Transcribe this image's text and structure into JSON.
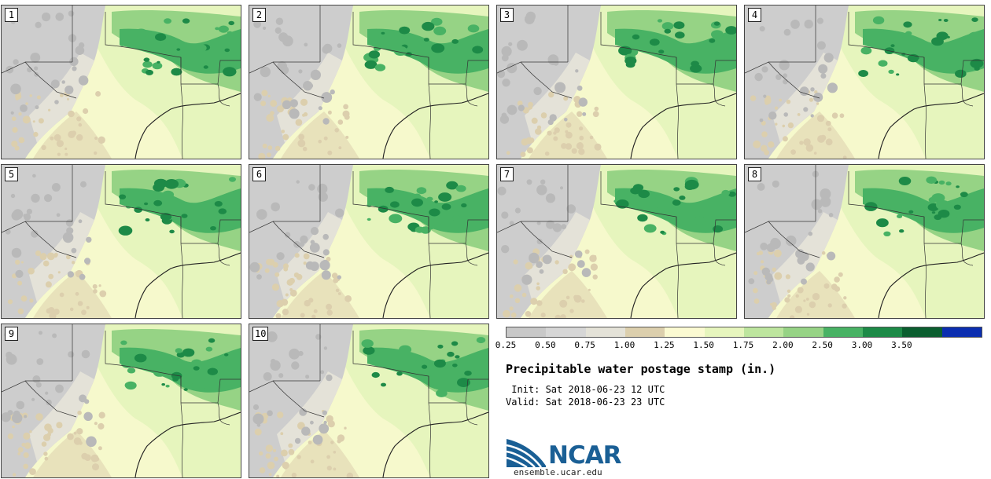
{
  "map": {
    "panels": [
      {
        "label": "1"
      },
      {
        "label": "2"
      },
      {
        "label": "3"
      },
      {
        "label": "4"
      },
      {
        "label": "5"
      },
      {
        "label": "6"
      },
      {
        "label": "7"
      },
      {
        "label": "8"
      },
      {
        "label": "9"
      },
      {
        "label": "10"
      }
    ]
  },
  "legend": {
    "colors": [
      "#c8c8c8",
      "#d6d6d6",
      "#e4e2d8",
      "#dccfad",
      "#fbfad2",
      "#e6f5bd",
      "#bde59e",
      "#96d385",
      "#48b264",
      "#1d8a47",
      "#0b5e2f",
      "#0b2eb0"
    ],
    "ticks": [
      "0.25",
      "0.50",
      "0.75",
      "1.00",
      "1.25",
      "1.50",
      "1.75",
      "2.00",
      "2.50",
      "3.00",
      "3.50"
    ]
  },
  "title": "Precipitable water postage stamp (in.)",
  "init": " Init: Sat 2018-06-23 12 UTC",
  "valid": "Valid: Sat 2018-06-23 23 UTC",
  "logo": {
    "text": "NCAR",
    "website": "ensemble.ucar.edu"
  },
  "colors": {
    "land_light": "#f6f9cc",
    "land_green": "#e6f5bd",
    "dry_gray": "#cdcdcd",
    "tan": "#dccfad",
    "wet_green": "#48b264",
    "mid_green": "#96d385",
    "logo_blue": "#1a5f95"
  }
}
